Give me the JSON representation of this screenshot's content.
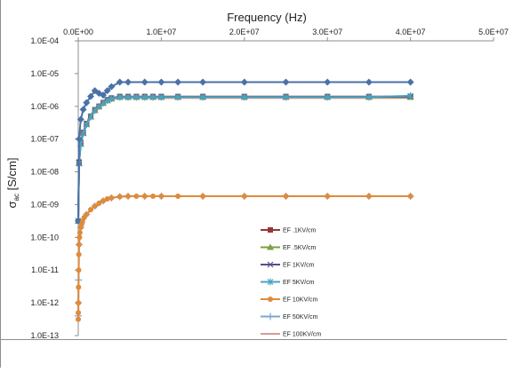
{
  "chart_data": {
    "type": "line",
    "title": "",
    "xlabel": "Frequency (Hz)",
    "ylabel_main": "σ",
    "ylabel_sub": "ac",
    "ylabel_rest": " [S/cm]",
    "xscale": "linear",
    "yscale": "log",
    "xlim": [
      0,
      50000000
    ],
    "ylim_exp": [
      -13,
      -4
    ],
    "x_ticks": [
      0,
      10000000,
      20000000,
      30000000,
      40000000,
      50000000
    ],
    "x_tick_labels": [
      "0.0E+00",
      "1.0E+07",
      "2.0E+07",
      "3.0E+07",
      "4.0E+07",
      "5.0E+07"
    ],
    "y_ticks_exp": [
      -4,
      -5,
      -6,
      -7,
      -8,
      -9,
      -10,
      -11,
      -12,
      -13
    ],
    "y_tick_labels": [
      "1.0E-04",
      "1.0E-05",
      "1.0E-06",
      "1.0E-07",
      "1.0E-08",
      "1.0E-09",
      "1.0E-10",
      "1.0E-11",
      "1.0E-12",
      "1.0E-13"
    ],
    "x_axis_position": "top",
    "gridlines": false,
    "legend_position": "lower-right",
    "series": [
      {
        "name": "EF .1KV/cm",
        "color": "#963634",
        "marker": "square",
        "x": [
          0,
          100000,
          300000,
          600000,
          1000000,
          1500000,
          2000000,
          2500000,
          3000000,
          3500000,
          4000000,
          5000000,
          6000000,
          7000000,
          8000000,
          9000000,
          10000000,
          12000000,
          15000000,
          20000000,
          25000000,
          30000000,
          35000000,
          40000000
        ],
        "y": [
          3.16e-10,
          2e-08,
          7.9e-08,
          1.6e-07,
          3e-07,
          5e-07,
          7.9e-07,
          1e-06,
          1.3e-06,
          1.6e-06,
          1.8e-06,
          2e-06,
          2e-06,
          2e-06,
          2e-06,
          2e-06,
          2e-06,
          2e-06,
          2e-06,
          2e-06,
          2e-06,
          2e-06,
          2e-06,
          2e-06
        ]
      },
      {
        "name": "EF .5KV/cm",
        "color": "#7f9f3f",
        "marker": "triangle",
        "x": [
          0,
          100000,
          300000,
          600000,
          1000000,
          1500000,
          2000000,
          2500000,
          3000000,
          3500000,
          4000000,
          5000000,
          6000000,
          7000000,
          8000000,
          9000000,
          10000000,
          12000000,
          15000000,
          20000000,
          25000000,
          30000000,
          35000000,
          40000000
        ],
        "y": [
          3.16e-10,
          1.8e-08,
          7e-08,
          1.5e-07,
          2.8e-07,
          4.8e-07,
          7.5e-07,
          9.8e-07,
          1.25e-06,
          1.5e-06,
          1.7e-06,
          1.9e-06,
          1.9e-06,
          1.9e-06,
          1.9e-06,
          1.9e-06,
          1.9e-06,
          1.9e-06,
          1.9e-06,
          1.9e-06,
          1.9e-06,
          1.9e-06,
          1.9e-06,
          1.9e-06
        ]
      },
      {
        "name": "EF 1KV/cm",
        "color": "#5a4b8c",
        "marker": "x",
        "x": [
          0,
          100000,
          300000,
          600000,
          1000000,
          1500000,
          2000000,
          2500000,
          3000000,
          3500000,
          4000000,
          5000000,
          6000000,
          7000000,
          8000000,
          9000000,
          10000000,
          12000000,
          15000000,
          20000000,
          25000000,
          30000000,
          35000000,
          40000000
        ],
        "y": [
          3.16e-10,
          1.9e-08,
          7.5e-08,
          1.55e-07,
          2.9e-07,
          4.9e-07,
          7.7e-07,
          1e-06,
          1.28e-06,
          1.55e-06,
          1.75e-06,
          1.95e-06,
          1.95e-06,
          1.95e-06,
          1.95e-06,
          1.95e-06,
          1.95e-06,
          1.95e-06,
          1.95e-06,
          1.95e-06,
          1.95e-06,
          1.95e-06,
          1.95e-06,
          2e-06
        ]
      },
      {
        "name": "EF 5KV/cm",
        "color": "#4aa3c4",
        "marker": "asterisk",
        "x": [
          0,
          100000,
          300000,
          600000,
          1000000,
          1500000,
          2000000,
          2500000,
          3000000,
          3500000,
          4000000,
          5000000,
          6000000,
          7000000,
          8000000,
          9000000,
          10000000,
          12000000,
          15000000,
          20000000,
          25000000,
          30000000,
          35000000,
          40000000
        ],
        "y": [
          3.16e-10,
          1.8e-08,
          7.2e-08,
          1.5e-07,
          2.8e-07,
          4.8e-07,
          7.6e-07,
          9.9e-07,
          1.26e-06,
          1.52e-06,
          1.72e-06,
          1.92e-06,
          1.92e-06,
          1.92e-06,
          1.92e-06,
          1.92e-06,
          1.92e-06,
          1.92e-06,
          1.92e-06,
          1.92e-06,
          1.92e-06,
          1.92e-06,
          1.92e-06,
          2.1e-06
        ]
      },
      {
        "name": "EF 10KV/cm",
        "color": "#e08a3c",
        "marker": "circle",
        "x": [
          0,
          10000,
          20000,
          30000,
          50000,
          70000,
          100000,
          150000,
          200000,
          300000,
          400000,
          500000,
          700000,
          1000000,
          1500000,
          2000000,
          2500000,
          3000000,
          3500000,
          4000000,
          5000000,
          6000000,
          7000000,
          8000000,
          9000000,
          10000000,
          12000000,
          15000000,
          20000000,
          25000000,
          30000000,
          35000000,
          40000000
        ],
        "y": [
          3.16e-13,
          5e-13,
          1e-12,
          3e-12,
          1e-11,
          3e-11,
          6e-11,
          1e-10,
          1.4e-10,
          2e-10,
          2.5e-10,
          3e-10,
          4e-10,
          5e-10,
          7e-10,
          9e-10,
          1.1e-09,
          1.3e-09,
          1.5e-09,
          1.6e-09,
          1.75e-09,
          1.8e-09,
          1.8e-09,
          1.8e-09,
          1.8e-09,
          1.8e-09,
          1.8e-09,
          1.8e-09,
          1.8e-09,
          1.8e-09,
          1.8e-09,
          1.8e-09,
          1.8e-09
        ]
      },
      {
        "name": "EF 50KV/cm",
        "color": "#7aa7d4",
        "marker": "plus",
        "x": [
          0,
          10000,
          30000,
          100000,
          300000,
          1000000,
          2000000,
          3000000,
          4000000,
          5000000,
          6000000,
          8000000,
          10000000,
          15000000,
          20000000,
          25000000,
          30000000,
          35000000,
          40000000
        ],
        "y": [
          4e-13,
          1e-12,
          5e-12,
          6e-11,
          2e-10,
          5e-10,
          9e-10,
          1.3e-09,
          1.6e-09,
          1.75e-09,
          1.8e-09,
          1.8e-09,
          1.8e-09,
          1.8e-09,
          1.8e-09,
          1.8e-09,
          1.8e-09,
          1.8e-09,
          1.8e-09
        ]
      },
      {
        "name": "EF 100KV/cm",
        "color": "#d79a9a",
        "marker": "none",
        "x": [
          0,
          100000,
          300000,
          600000,
          1000000,
          1500000,
          2000000,
          2500000,
          3000000,
          3500000,
          4000000,
          5000000,
          6000000,
          8000000,
          10000000,
          15000000,
          20000000,
          25000000,
          30000000,
          35000000,
          40000000
        ],
        "y": [
          3.16e-10,
          1.7e-08,
          6.8e-08,
          1.45e-07,
          2.7e-07,
          4.6e-07,
          7.2e-07,
          9.5e-07,
          1.2e-06,
          1.45e-06,
          1.65e-06,
          1.8e-06,
          1.8e-06,
          1.8e-06,
          1.8e-06,
          1.8e-06,
          1.8e-06,
          1.8e-06,
          1.8e-06,
          1.8e-06,
          1.8e-06
        ]
      },
      {
        "name": "",
        "color": "#4a72a8",
        "marker": "diamond",
        "x": [
          0,
          100000,
          300000,
          600000,
          1000000,
          1500000,
          2000000,
          2500000,
          3000000,
          3500000,
          4000000,
          5000000,
          6000000,
          8000000,
          10000000,
          12000000,
          15000000,
          20000000,
          25000000,
          30000000,
          35000000,
          40000000
        ],
        "y": [
          3.16e-10,
          1e-07,
          4e-07,
          8e-07,
          1.3e-06,
          2e-06,
          3e-06,
          2.5e-06,
          2.2e-06,
          3e-06,
          4e-06,
          5.5e-06,
          5.5e-06,
          5.5e-06,
          5.5e-06,
          5.5e-06,
          5.5e-06,
          5.5e-06,
          5.5e-06,
          5.5e-06,
          5.5e-06,
          5.5e-06
        ]
      }
    ]
  }
}
